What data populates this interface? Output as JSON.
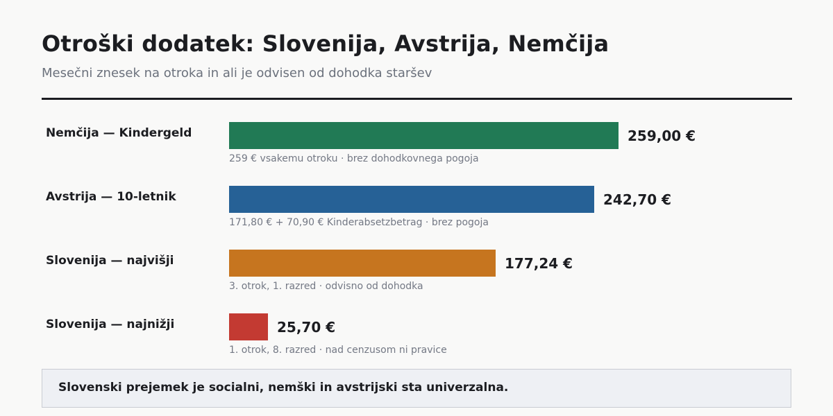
{
  "chart_data": {
    "type": "bar",
    "orientation": "horizontal",
    "title": "Otroški dodatek: Slovenija, Avstrija, Nemčija",
    "subtitle": "Mesečni znesek na otroka in ali je odvisen od dohodka staršev",
    "xlim": [
      0,
      259
    ],
    "categories": [
      "Nemčija — Kindergeld",
      "Avstrija — 10-letnik",
      "Slovenija — najvišji",
      "Slovenija — najnižji"
    ],
    "values": [
      259.0,
      242.7,
      177.24,
      25.7
    ],
    "value_labels": [
      "259,00 €",
      "242,70 €",
      "177,24 €",
      "25,70 €"
    ],
    "notes": [
      "259 € vsakemu otroku · brez dohodkovnega pogoja",
      "171,80 € + 70,90 € Kinderabsetzbetrag · brez pogoja",
      "3. otrok, 1. razred · odvisno od dohodka",
      "1. otrok, 8. razred · nad cenzusom ni pravice"
    ],
    "colors": [
      "#217a55",
      "#266196",
      "#c6751f",
      "#c33a32"
    ],
    "footnote": "Slovenski prejemek je socialni, nemški in avstrijski sta univerzalna."
  }
}
